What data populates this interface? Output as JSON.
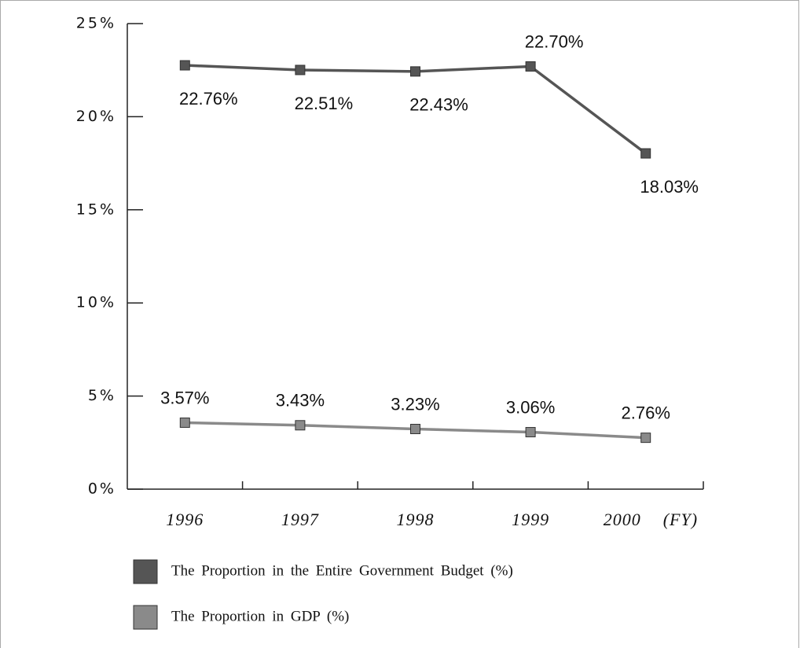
{
  "chart_data": {
    "type": "line",
    "categories": [
      "1996",
      "1997",
      "1998",
      "1999",
      "2000"
    ],
    "xlabel": "(FY)",
    "series": [
      {
        "name": "The Proportion in the Entire Government Budget (%)",
        "color": "#555555",
        "values": [
          22.76,
          22.51,
          22.43,
          22.7,
          18.03
        ],
        "value_labels": [
          "22.76%",
          "22.51%",
          "22.43%",
          "22.70%",
          "18.03%"
        ]
      },
      {
        "name": "The Proportion in GDP (%)",
        "color": "#8a8a8a",
        "values": [
          3.57,
          3.43,
          3.23,
          3.06,
          2.76
        ],
        "value_labels": [
          "3.57%",
          "3.43%",
          "3.23%",
          "3.06%",
          "2.76%"
        ]
      }
    ],
    "ylim": [
      0,
      25
    ],
    "yticks": [
      {
        "value": 0,
        "label": "0%"
      },
      {
        "value": 5,
        "label": "5%"
      },
      {
        "value": 10,
        "label": "10%"
      },
      {
        "value": 15,
        "label": "15%"
      },
      {
        "value": 20,
        "label": "20%"
      },
      {
        "value": 25,
        "label": "25%"
      }
    ]
  }
}
